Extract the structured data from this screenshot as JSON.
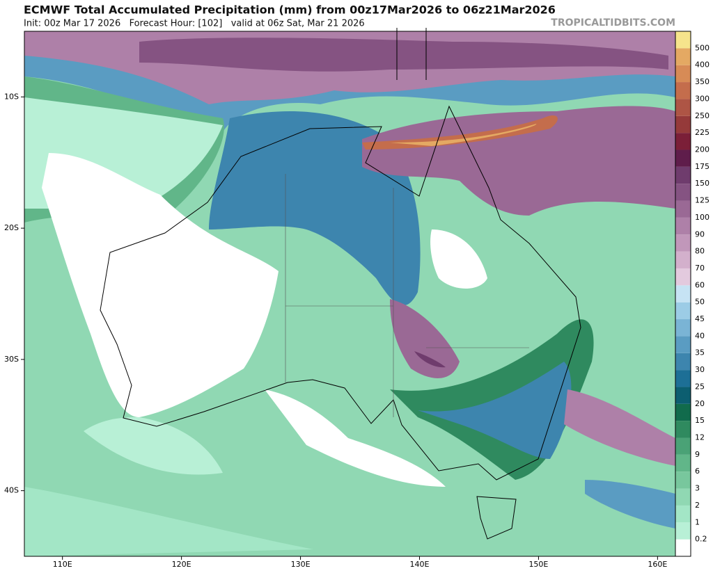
{
  "header": {
    "title": "ECMWF Total Accumulated Precipitation (mm) from 00z17Mar2026 to 06z21Mar2026",
    "subtitle": "Init: 00z Mar 17 2026   Forecast Hour: [102]   valid at 06z Sat, Mar 21 2026",
    "source": "TROPICALTIDBITS.COM"
  },
  "map": {
    "lon_range": [
      106.8,
      161.5
    ],
    "lat_range": [
      -45,
      -5
    ],
    "lon_ticks": [
      {
        "value": 110,
        "label": "110E"
      },
      {
        "value": 120,
        "label": "120E"
      },
      {
        "value": 130,
        "label": "130E"
      },
      {
        "value": 140,
        "label": "140E"
      },
      {
        "value": 150,
        "label": "150E"
      },
      {
        "value": 160,
        "label": "160E"
      }
    ],
    "lat_ticks": [
      {
        "value": -10,
        "label": "10S"
      },
      {
        "value": -20,
        "label": "20S"
      },
      {
        "value": -30,
        "label": "30S"
      },
      {
        "value": -40,
        "label": "40S"
      }
    ]
  },
  "colorbar": {
    "levels": [
      0.2,
      1,
      2,
      3,
      6,
      9,
      12,
      15,
      20,
      25,
      30,
      35,
      40,
      45,
      50,
      60,
      70,
      80,
      90,
      100,
      125,
      150,
      175,
      200,
      225,
      250,
      300,
      350,
      400,
      500
    ],
    "colors": [
      "#ffffff",
      "#b8f0d6",
      "#a3e6c6",
      "#90d8b3",
      "#78c79d",
      "#61b689",
      "#4aa276",
      "#2f8a5f",
      "#116b4c",
      "#0c5e70",
      "#1d6f96",
      "#3d85ae",
      "#5a9cc2",
      "#7ab4d5",
      "#9ccce6",
      "#c6e3f4",
      "#e3cade",
      "#d3b0cc",
      "#c197ba",
      "#ae80a8",
      "#9a6995",
      "#855382",
      "#6f3c6d",
      "#5f1d4b",
      "#7b1f38",
      "#953a3a",
      "#ae5545",
      "#c46d4c",
      "#d78b56",
      "#e4a963",
      "#f6e48c"
    ]
  }
}
